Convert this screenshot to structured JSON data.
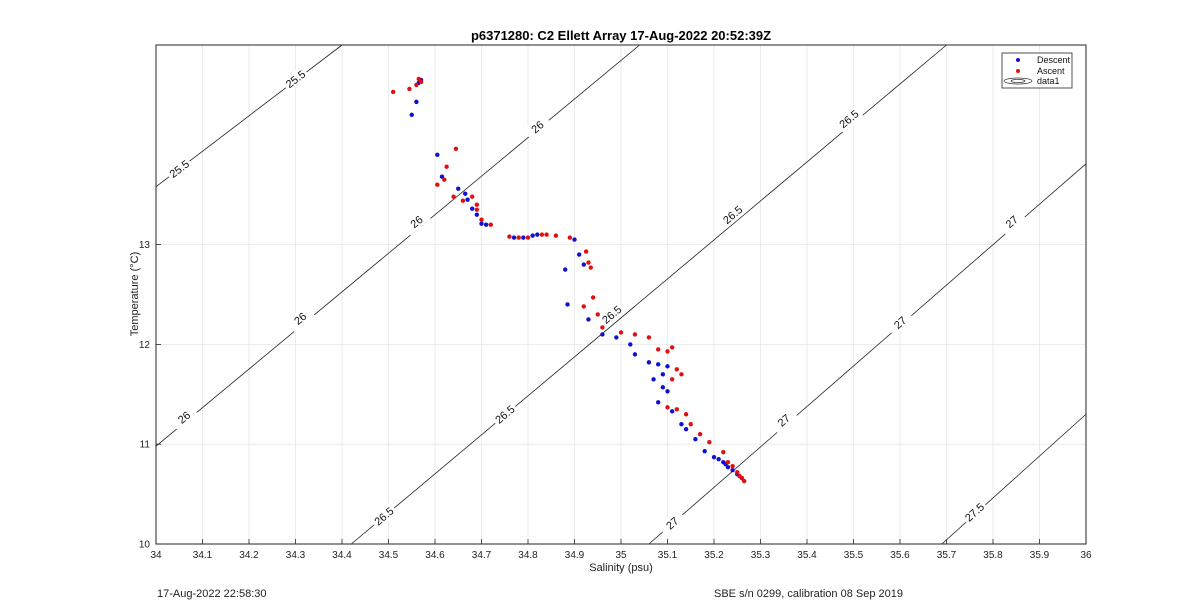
{
  "chart_data": {
    "type": "scatter",
    "title": "p6371280: C2 Ellett Array 17-Aug-2022 20:52:39Z",
    "xlabel": "Salinity (psu)",
    "ylabel": "Temperature (°C)",
    "xlim": [
      34,
      36
    ],
    "ylim": [
      10,
      15
    ],
    "xticks": [
      "34",
      "34.1",
      "34.2",
      "34.3",
      "34.4",
      "34.5",
      "34.6",
      "34.7",
      "34.8",
      "34.9",
      "35",
      "35.1",
      "35.2",
      "35.3",
      "35.4",
      "35.5",
      "35.6",
      "35.7",
      "35.8",
      "35.9",
      "36"
    ],
    "yticks": [
      "10",
      "11",
      "12",
      "13"
    ],
    "grid": true,
    "legend_position": "top-right",
    "legend": [
      "Descent",
      "Ascent",
      "data1"
    ],
    "contours": [
      {
        "label": "25.5",
        "points": [
          [
            34.0,
            13.58
          ],
          [
            34.4,
            15.0
          ]
        ],
        "label_pos": [
          [
            34.05,
            13.76
          ],
          [
            34.3,
            14.66
          ]
        ]
      },
      {
        "label": "26",
        "points": [
          [
            34.0,
            10.98
          ],
          [
            35.04,
            15.0
          ]
        ],
        "label_pos": [
          [
            34.06,
            11.27
          ],
          [
            34.31,
            12.26
          ],
          [
            34.56,
            13.23
          ],
          [
            34.82,
            14.18
          ]
        ]
      },
      {
        "label": "26.5",
        "points": [
          [
            34.42,
            10.0
          ],
          [
            35.7,
            15.0
          ]
        ],
        "label_pos": [
          [
            34.49,
            10.28
          ],
          [
            34.75,
            11.3
          ],
          [
            34.98,
            12.3
          ],
          [
            35.24,
            13.3
          ],
          [
            35.49,
            14.26
          ]
        ]
      },
      {
        "label": "27",
        "points": [
          [
            35.06,
            10.0
          ],
          [
            36.0,
            13.81
          ]
        ],
        "label_pos": [
          [
            35.11,
            10.21
          ],
          [
            35.35,
            11.24
          ],
          [
            35.6,
            12.22
          ],
          [
            35.84,
            13.23
          ]
        ]
      },
      {
        "label": "27.5",
        "points": [
          [
            35.69,
            10.0
          ],
          [
            36.0,
            11.3
          ]
        ],
        "label_pos": [
          [
            35.76,
            10.32
          ]
        ]
      }
    ],
    "series": [
      {
        "name": "Descent",
        "color": "#1010d0",
        "x": [
          34.57,
          34.565,
          34.56,
          34.55,
          34.605,
          34.615,
          34.65,
          34.665,
          34.67,
          34.68,
          34.69,
          34.7,
          34.71,
          34.77,
          34.79,
          34.81,
          34.82,
          34.9,
          34.91,
          34.92,
          34.88,
          34.885,
          34.93,
          34.96,
          34.99,
          35.02,
          35.03,
          35.06,
          35.08,
          35.09,
          35.1,
          35.07,
          35.09,
          35.1,
          35.08,
          35.11,
          35.13,
          35.14,
          35.16,
          35.18,
          35.2,
          35.21,
          35.22,
          35.225,
          35.23,
          35.24,
          35.25,
          35.26
        ],
        "y": [
          14.65,
          14.62,
          14.43,
          14.3,
          13.9,
          13.68,
          13.56,
          13.51,
          13.45,
          13.36,
          13.3,
          13.21,
          13.2,
          13.07,
          13.07,
          13.09,
          13.1,
          13.05,
          12.9,
          12.8,
          12.75,
          12.4,
          12.25,
          12.1,
          12.07,
          12.0,
          11.9,
          11.82,
          11.8,
          11.7,
          11.78,
          11.65,
          11.57,
          11.53,
          11.42,
          11.33,
          11.2,
          11.15,
          11.05,
          10.93,
          10.87,
          10.85,
          10.82,
          10.8,
          10.77,
          10.74,
          10.7,
          10.66
        ]
      },
      {
        "name": "Ascent",
        "color": "#e01010",
        "x": [
          34.51,
          34.545,
          34.56,
          34.57,
          34.565,
          34.605,
          34.62,
          34.625,
          34.64,
          34.645,
          34.66,
          34.68,
          34.69,
          34.69,
          34.7,
          34.72,
          34.76,
          34.78,
          34.8,
          34.83,
          34.84,
          34.86,
          34.89,
          34.925,
          34.93,
          34.935,
          34.94,
          34.92,
          34.95,
          34.96,
          35.0,
          35.03,
          35.06,
          35.08,
          35.1,
          35.11,
          35.11,
          35.12,
          35.13,
          35.1,
          35.12,
          35.14,
          35.15,
          35.17,
          35.19,
          35.22,
          35.23,
          35.24,
          35.25,
          35.255,
          35.26,
          35.265
        ],
        "y": [
          14.53,
          14.56,
          14.6,
          14.63,
          14.66,
          13.6,
          13.65,
          13.78,
          13.48,
          13.96,
          13.44,
          13.48,
          13.4,
          13.35,
          13.25,
          13.2,
          13.08,
          13.07,
          13.07,
          13.1,
          13.1,
          13.09,
          13.07,
          12.93,
          12.82,
          12.77,
          12.47,
          12.38,
          12.3,
          12.17,
          12.12,
          12.1,
          12.07,
          11.95,
          11.93,
          11.97,
          11.65,
          11.75,
          11.7,
          11.37,
          11.35,
          11.3,
          11.2,
          11.1,
          11.02,
          10.92,
          10.82,
          10.78,
          10.72,
          10.68,
          10.66,
          10.63
        ]
      }
    ]
  },
  "footer": {
    "left": "17-Aug-2022 22:58:30",
    "right": "SBE s/n 0299, calibration 08 Sep 2019"
  }
}
